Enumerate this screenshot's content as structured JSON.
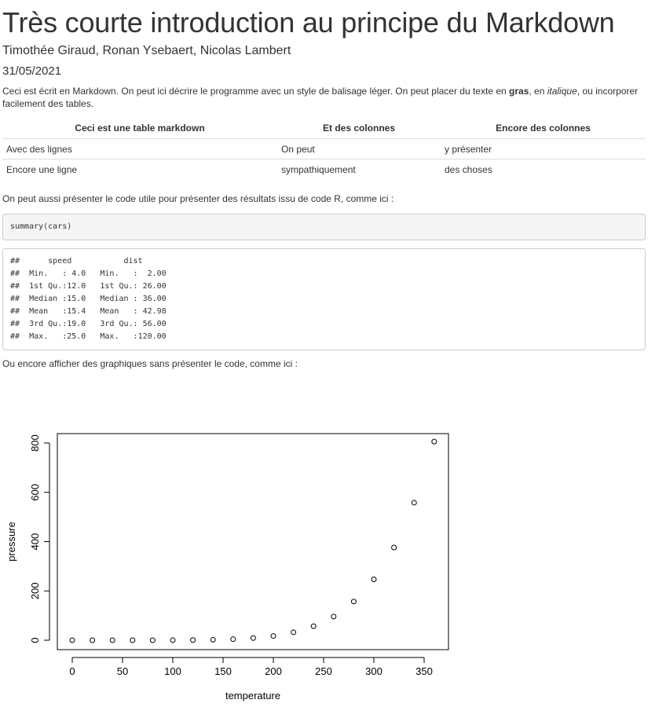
{
  "title": "Très courte introduction au principe du Markdown",
  "authors": "Timothée Giraud, Ronan Ysebaert, Nicolas Lambert",
  "date": "31/05/2021",
  "intro": {
    "part1": "Ceci est écrit en Markdown. On peut ici décrire le programme avec un style de balisage léger. On peut placer du texte en ",
    "bold": "gras",
    "part2": ", en ",
    "italic": "italique",
    "part3": ", ou incorporer facilement des tables."
  },
  "table": {
    "headers": [
      "Ceci est une table markdown",
      "Et des colonnes",
      "Encore des colonnes"
    ],
    "rows": [
      [
        "Avec des lignes",
        "On peut",
        "y présenter"
      ],
      [
        "Encore une ligne",
        "sympathiquement",
        "des choses"
      ]
    ]
  },
  "para2": "On peut aussi présenter le code utile pour présenter des résultats issu de code R, comme ici :",
  "code_source": "summary(cars)",
  "code_output": [
    "##      speed           dist       ",
    "##  Min.   : 4.0   Min.   :  2.00  ",
    "##  1st Qu.:12.0   1st Qu.: 26.00  ",
    "##  Median :15.0   Median : 36.00  ",
    "##  Mean   :15.4   Mean   : 42.98  ",
    "##  3rd Qu.:19.0   3rd Qu.: 56.00  ",
    "##  Max.   :25.0   Max.   :120.00  "
  ],
  "para3": "Ou encore afficher des graphiques sans présenter le code, comme ici :",
  "chart_data": {
    "type": "scatter",
    "title": "",
    "xlabel": "temperature",
    "ylabel": "pressure",
    "xlim": [
      0,
      360
    ],
    "ylim": [
      0,
      806
    ],
    "xticks": [
      0,
      50,
      100,
      150,
      200,
      250,
      300,
      350
    ],
    "yticks": [
      0,
      200,
      400,
      600,
      800
    ],
    "grid": false,
    "x": [
      0,
      20,
      40,
      60,
      80,
      100,
      120,
      140,
      160,
      180,
      200,
      220,
      240,
      260,
      280,
      300,
      320,
      340,
      360
    ],
    "y": [
      0.0002,
      0.0012,
      0.006,
      0.03,
      0.09,
      0.27,
      0.75,
      1.85,
      4.2,
      8.8,
      17.3,
      32.1,
      57,
      96,
      157,
      247,
      376,
      558,
      806
    ]
  }
}
